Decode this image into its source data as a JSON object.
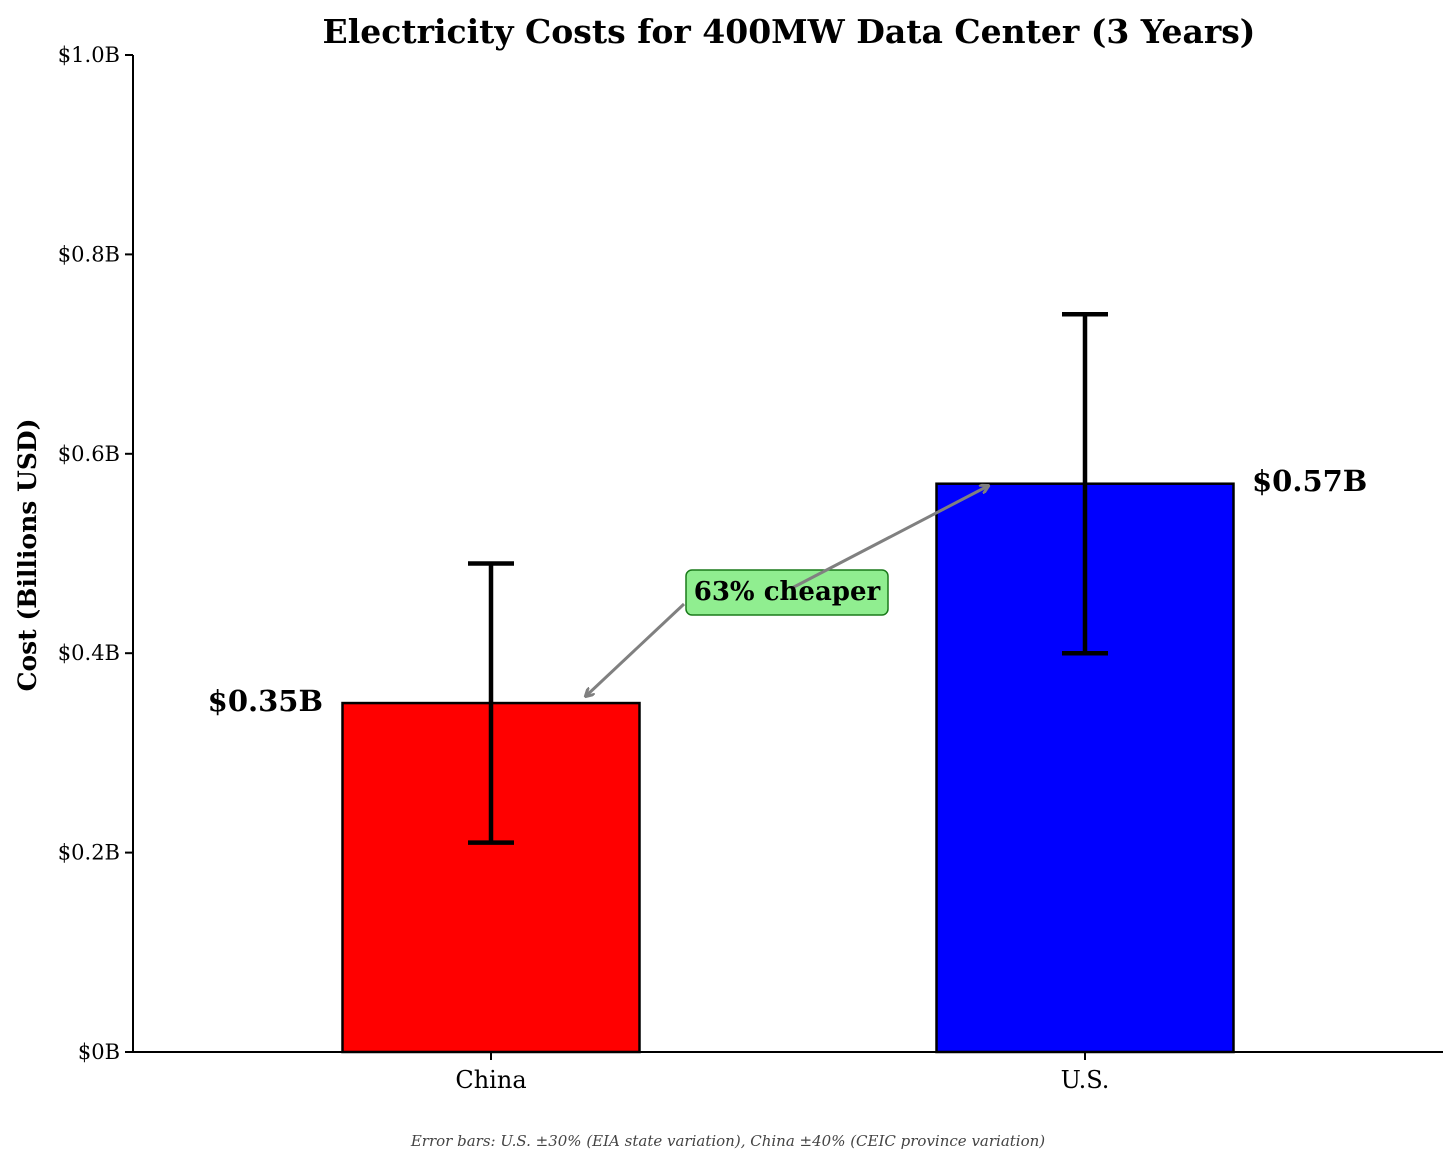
{
  "chart_data": {
    "type": "bar",
    "title": "Electricity Costs for 400MW Data Center (3 Years)",
    "xlabel": "",
    "ylabel": "Cost (Billions USD)",
    "ylim": [
      0,
      1.0
    ],
    "yticks": [
      0,
      0.2,
      0.4,
      0.6,
      0.8,
      1.0
    ],
    "ytick_labels": [
      "$0B",
      "$0.2B",
      "$0.4B",
      "$0.6B",
      "$0.8B",
      "$1.0B"
    ],
    "categories": [
      "China",
      "U.S."
    ],
    "values": [
      0.35,
      0.57
    ],
    "value_labels": [
      "$0.35B",
      "$0.57B"
    ],
    "colors": [
      "#ff0000",
      "#0000ff"
    ],
    "error_bars": [
      {
        "low": 0.21,
        "high": 0.49
      },
      {
        "low": 0.4,
        "high": 0.74
      }
    ],
    "annotation": {
      "text": "63% cheaper",
      "box_color": "#90ee90",
      "border_color": "#1a7a1a",
      "arrow_color": "#808080"
    },
    "footnote": "Error bars: U.S. ±30% (EIA state variation), China ±40% (CEIC province variation)",
    "grid": false
  }
}
